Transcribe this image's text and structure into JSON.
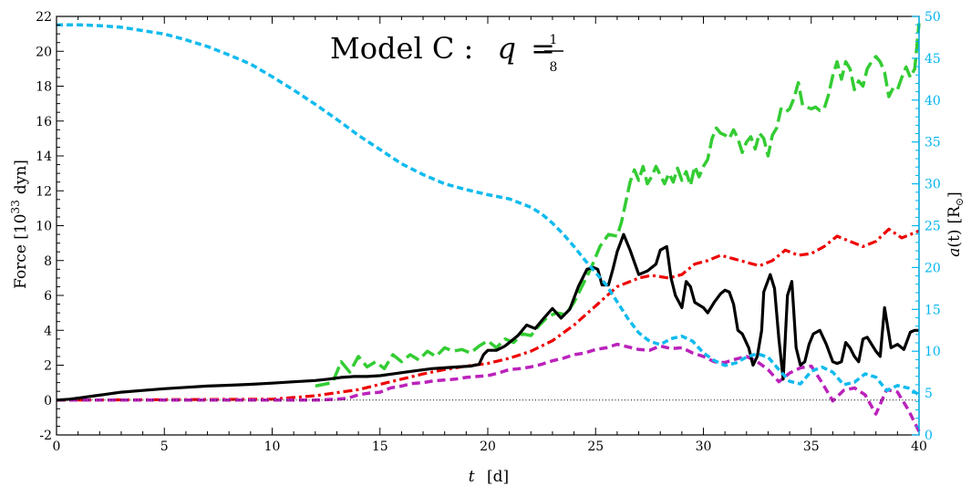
{
  "chart_data": {
    "type": "line",
    "title": {
      "prefix": "Model C :",
      "variable": "q",
      "equals": "=",
      "numerator": "1",
      "denominator": "8"
    },
    "xlabel": {
      "var": "t",
      "unit": "[d]"
    },
    "ylabel": {
      "text": "Force [10",
      "exp": "33",
      "unit": "dyn]"
    },
    "y2label": {
      "prefix": "a",
      "arg": "(t)",
      "unit": "[R",
      "sub": "⊙",
      "close": "]"
    },
    "xlim": [
      0,
      40
    ],
    "ylim": [
      -2,
      22
    ],
    "y2lim": [
      0,
      50
    ],
    "xticks": [
      "0",
      "5",
      "10",
      "15",
      "20",
      "25",
      "30",
      "35",
      "40"
    ],
    "yticks": [
      "-2",
      "0",
      "2",
      "4",
      "6",
      "8",
      "10",
      "12",
      "14",
      "16",
      "18",
      "20",
      "22"
    ],
    "y2ticks": [
      "0",
      "5",
      "10",
      "15",
      "20",
      "25",
      "30",
      "35",
      "40",
      "45",
      "50"
    ],
    "colors": {
      "axis": "#000000",
      "right_axis": "#00b4f0",
      "green": "#33cc33",
      "red": "#ee0000",
      "black": "#000000",
      "magenta": "#bb22bb",
      "cyan": "#11bbee",
      "zero": "#000000"
    },
    "series": [
      {
        "name": "green-dashed",
        "axis": "left",
        "color_key": "green",
        "x": [
          12,
          12.8,
          13.2,
          13.6,
          14,
          14.4,
          14.8,
          15.2,
          15.6,
          16,
          16.4,
          16.8,
          17.2,
          17.6,
          18,
          18.4,
          18.8,
          19.2,
          19.6,
          20,
          20.4,
          20.8,
          21.2,
          21.6,
          22,
          22.4,
          22.8,
          23.2,
          23.6,
          24,
          24.4,
          24.8,
          25.2,
          25.6,
          26,
          26.2,
          26.6,
          26.8,
          27,
          27.2,
          27.4,
          27.6,
          27.8,
          28,
          28.2,
          28.4,
          28.6,
          28.8,
          29,
          29.2,
          29.4,
          29.6,
          29.8,
          30,
          30.2,
          30.4,
          30.6,
          30.8,
          31,
          31.2,
          31.4,
          31.6,
          31.8,
          32,
          32.2,
          32.4,
          32.6,
          32.8,
          33,
          33.2,
          33.4,
          33.6,
          33.8,
          34,
          34.2,
          34.4,
          34.6,
          34.8,
          35,
          35.2,
          35.4,
          35.6,
          35.8,
          36,
          36.2,
          36.4,
          36.6,
          36.8,
          37,
          37.2,
          37.4,
          37.6,
          37.8,
          38,
          38.2,
          38.4,
          38.6,
          38.8,
          39,
          39.2,
          39.4,
          39.6,
          39.8,
          40
        ],
        "values": [
          0.8,
          1.0,
          2.2,
          1.6,
          2.5,
          1.9,
          2.2,
          1.8,
          2.6,
          2.2,
          2.6,
          2.3,
          2.8,
          2.5,
          3.0,
          2.8,
          2.9,
          2.7,
          3.1,
          3.4,
          3.0,
          3.5,
          3.3,
          3.8,
          3.7,
          4.3,
          4.8,
          5.0,
          4.9,
          5.6,
          6.6,
          7.6,
          8.8,
          9.5,
          9.4,
          10.2,
          12.5,
          13.2,
          12.6,
          13.4,
          12.4,
          12.8,
          13.4,
          12.9,
          12.4,
          13.0,
          12.5,
          13.3,
          12.6,
          13.1,
          12.3,
          13.4,
          12.8,
          13.4,
          13.8,
          15.0,
          15.6,
          15.3,
          15.2,
          15.0,
          15.5,
          15.0,
          14.2,
          14.8,
          15.1,
          14.4,
          15.3,
          15.0,
          14.0,
          15.2,
          15.6,
          16.7,
          16.5,
          16.7,
          17.3,
          18.2,
          16.9,
          16.8,
          16.7,
          16.8,
          16.6,
          16.7,
          17.5,
          18.6,
          19.4,
          18.4,
          19.4,
          19.0,
          17.8,
          18.3,
          18.0,
          19.0,
          19.4,
          19.7,
          19.4,
          18.8,
          17.4,
          17.9,
          17.8,
          18.5,
          19.1,
          18.5,
          19.0,
          21.6
        ],
        "dash": "16 6",
        "width": 3.5
      },
      {
        "name": "red-dashdot",
        "axis": "left",
        "color_key": "red",
        "x": [
          0,
          10,
          12,
          14,
          15,
          16,
          17,
          18,
          19,
          20,
          21,
          22,
          23,
          24,
          25,
          26,
          27,
          27.6,
          28.4,
          29,
          29.6,
          30.2,
          30.8,
          31.4,
          32,
          32.6,
          33.2,
          33.8,
          34.4,
          35,
          35.6,
          36.2,
          36.8,
          37.4,
          38,
          38.6,
          39.2,
          39.8,
          40
        ],
        "values": [
          0,
          0.05,
          0.25,
          0.6,
          0.9,
          1.2,
          1.5,
          1.75,
          1.95,
          2.1,
          2.4,
          2.8,
          3.4,
          4.3,
          5.4,
          6.5,
          7.0,
          7.15,
          7.0,
          7.2,
          7.8,
          8.0,
          8.3,
          8.1,
          7.9,
          7.7,
          8.0,
          8.6,
          8.3,
          8.4,
          8.8,
          9.4,
          9.1,
          8.8,
          9.1,
          9.8,
          9.3,
          9.6,
          9.7
        ],
        "dash": "10 4 3 4",
        "width": 3.2
      },
      {
        "name": "magenta-dashed",
        "axis": "left",
        "color_key": "magenta",
        "x": [
          0,
          12,
          13,
          13.5,
          14,
          14.5,
          15,
          15.5,
          16,
          16.5,
          17,
          17.5,
          18,
          18.5,
          19,
          19.5,
          20,
          20.5,
          21,
          21.5,
          22,
          22.5,
          23,
          23.5,
          24,
          24.5,
          25,
          25.5,
          26,
          26.5,
          27,
          27.5,
          28,
          28.5,
          29,
          29.5,
          30,
          30.5,
          31,
          31.5,
          32,
          32.5,
          33,
          33.5,
          34,
          34.5,
          35,
          35.5,
          36,
          36.5,
          37,
          37.5,
          38,
          38.5,
          39,
          39.5,
          40
        ],
        "values": [
          0,
          0,
          0.05,
          0.1,
          0.3,
          0.4,
          0.45,
          0.7,
          0.8,
          0.95,
          1.0,
          1.1,
          1.15,
          1.2,
          1.3,
          1.35,
          1.4,
          1.55,
          1.75,
          1.8,
          1.9,
          2.05,
          2.25,
          2.4,
          2.6,
          2.7,
          2.9,
          3.0,
          3.2,
          3.05,
          2.9,
          2.85,
          3.1,
          2.95,
          3.0,
          2.7,
          2.5,
          2.2,
          2.15,
          2.35,
          2.5,
          2.2,
          1.75,
          1.05,
          1.55,
          1.85,
          1.95,
          1.0,
          -0.05,
          0.55,
          0.7,
          0.3,
          -0.8,
          0.6,
          0.45,
          -0.55,
          -1.8
        ],
        "dash": "9 5",
        "width": 3.5
      },
      {
        "name": "black-solid",
        "axis": "left",
        "color_key": "black",
        "x": [
          0,
          0.6,
          1.2,
          1.8,
          2.4,
          3,
          4,
          5,
          6,
          7,
          8,
          9,
          10,
          11,
          12,
          12.6,
          13.2,
          13.8,
          14.4,
          15,
          15.6,
          16.2,
          16.8,
          17.4,
          18,
          18.6,
          19.2,
          19.6,
          19.8,
          20,
          20.4,
          20.8,
          21,
          21.4,
          21.8,
          22.2,
          22.6,
          23,
          23.4,
          23.8,
          24.2,
          24.6,
          24.9,
          25.1,
          25.3,
          25.6,
          25.8,
          26,
          26.3,
          26.6,
          27,
          27.4,
          27.8,
          28,
          28.3,
          28.5,
          28.7,
          29,
          29.2,
          29.4,
          29.6,
          30,
          30.2,
          30.5,
          30.8,
          31,
          31.2,
          31.4,
          31.6,
          31.8,
          32.1,
          32.3,
          32.5,
          32.7,
          32.8,
          33.1,
          33.3,
          33.5,
          33.7,
          33.9,
          34.1,
          34.3,
          34.5,
          34.7,
          34.9,
          35.1,
          35.4,
          35.7,
          36,
          36.2,
          36.4,
          36.6,
          36.8,
          37,
          37.2,
          37.4,
          37.6,
          37.8,
          38,
          38.2,
          38.4,
          38.7,
          39,
          39.3,
          39.6,
          39.8,
          40
        ],
        "values": [
          0,
          0.05,
          0.15,
          0.25,
          0.35,
          0.45,
          0.55,
          0.65,
          0.73,
          0.8,
          0.85,
          0.9,
          0.97,
          1.05,
          1.12,
          1.2,
          1.3,
          1.35,
          1.35,
          1.4,
          1.5,
          1.6,
          1.7,
          1.8,
          1.85,
          1.9,
          1.95,
          2.05,
          2.6,
          2.85,
          2.85,
          3.1,
          3.3,
          3.7,
          4.3,
          4.1,
          4.7,
          5.25,
          4.7,
          5.2,
          6.5,
          7.5,
          7.6,
          7.5,
          6.6,
          6.6,
          7.5,
          8.5,
          9.5,
          8.6,
          7.2,
          7.4,
          7.8,
          8.6,
          8.8,
          7.0,
          6.0,
          5.3,
          6.8,
          6.5,
          5.6,
          5.3,
          5.0,
          5.6,
          6.1,
          6.3,
          6.2,
          5.5,
          4.0,
          3.8,
          3.0,
          2.0,
          2.5,
          4.0,
          6.2,
          7.2,
          6.4,
          3.5,
          1.2,
          6.0,
          6.8,
          3.0,
          2.0,
          2.2,
          3.2,
          3.8,
          4.0,
          3.2,
          2.2,
          2.1,
          2.2,
          3.3,
          3.0,
          2.5,
          2.2,
          3.5,
          3.6,
          3.2,
          2.8,
          2.5,
          5.3,
          3.0,
          3.2,
          2.9,
          3.9,
          4.0,
          4.0
        ],
        "dash": "",
        "width": 3.2
      },
      {
        "name": "cyan-dashed",
        "axis": "right",
        "color_key": "cyan",
        "x": [
          0,
          1,
          2,
          3,
          4,
          5,
          6,
          7,
          8,
          9,
          10,
          11,
          12,
          13,
          14,
          15,
          16,
          17,
          18,
          19,
          20,
          21,
          22,
          22.5,
          23,
          23.5,
          24,
          24.5,
          25,
          25.5,
          26,
          26.5,
          27,
          27.5,
          28,
          28.5,
          29,
          29.5,
          30,
          30.5,
          31,
          31.5,
          32,
          32.5,
          33,
          33.5,
          34,
          34.5,
          35,
          35.5,
          36,
          36.5,
          37,
          37.5,
          38,
          38.5,
          39,
          39.5,
          40
        ],
        "values": [
          49.0,
          49.0,
          48.9,
          48.7,
          48.3,
          47.9,
          47.2,
          46.4,
          45.4,
          44.3,
          42.8,
          41.2,
          39.5,
          37.7,
          35.8,
          34.1,
          32.4,
          31.1,
          30.0,
          29.3,
          28.7,
          28.2,
          27.2,
          26.4,
          25.3,
          24.0,
          22.5,
          20.9,
          19.4,
          17.9,
          15.9,
          13.9,
          12.2,
          11.2,
          10.8,
          11.5,
          11.8,
          11.2,
          9.8,
          8.9,
          8.3,
          8.6,
          9.3,
          9.7,
          9.3,
          7.8,
          6.4,
          6.1,
          7.6,
          8.1,
          7.5,
          6.0,
          6.3,
          7.3,
          6.9,
          5.3,
          5.9,
          5.6,
          4.8
        ],
        "dash": "7 4",
        "width": 3.5
      }
    ]
  }
}
